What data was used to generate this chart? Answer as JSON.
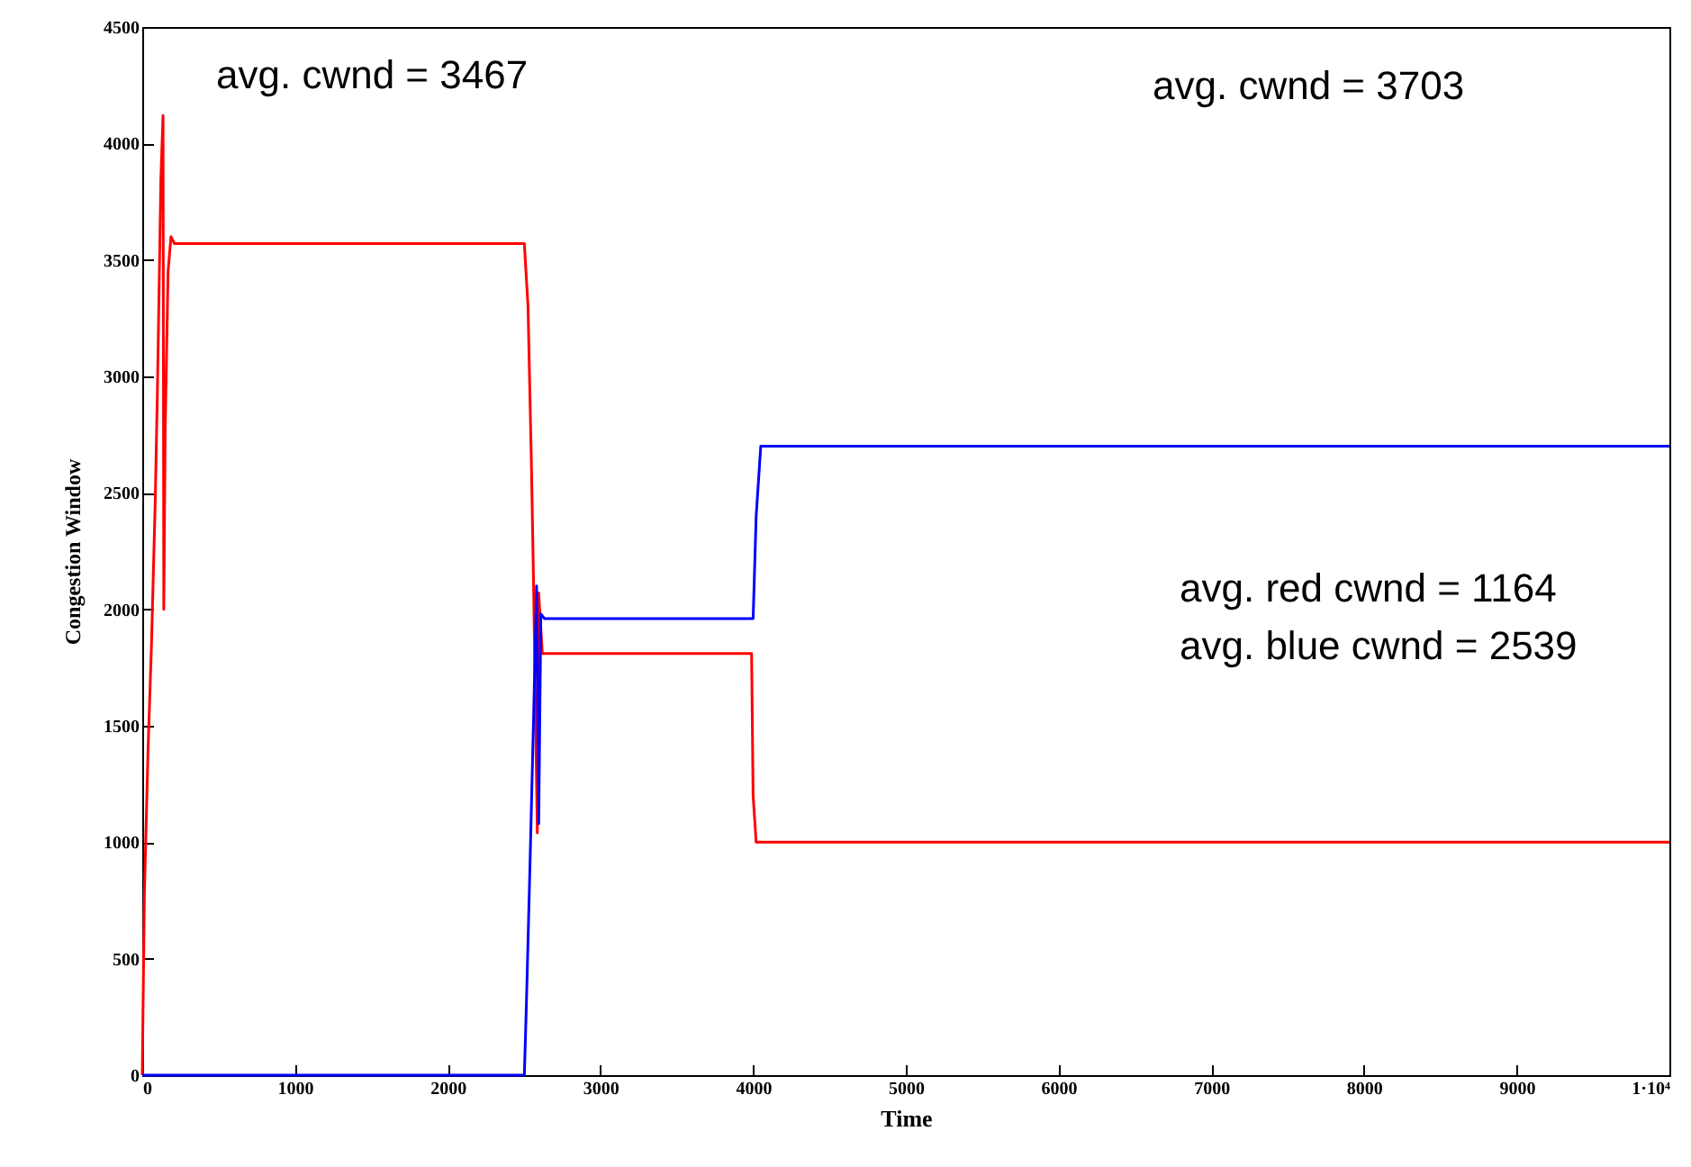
{
  "chart_data": {
    "type": "line",
    "xlabel": "Time",
    "ylabel": "Congestion Window",
    "xlim": [
      0,
      10000
    ],
    "xticks": [
      0,
      1000,
      2000,
      3000,
      4000,
      5000,
      6000,
      7000,
      8000,
      9000,
      {
        "value": 10000,
        "label": "1·10⁴"
      }
    ],
    "ylim": [
      0,
      4500
    ],
    "yticks": [
      0,
      500,
      1000,
      1500,
      2000,
      2500,
      3000,
      3500,
      4000,
      4500
    ],
    "grid": false,
    "line_style": "solid",
    "marker": "none",
    "annotations": [
      "avg. cwnd = 3467",
      "avg. cwnd = 3703",
      "avg. red cwnd = 1164",
      "avg. blue cwnd = 2539"
    ],
    "series": [
      {
        "color": "#ff0000",
        "x": [
          0,
          14,
          38,
          61,
          85,
          99,
          122,
          136,
          141,
          150,
          169,
          188,
          211,
          2502,
          2526,
          2549,
          2563,
          2587,
          2596,
          2620,
          3990,
          4000,
          4020,
          10000
        ],
        "values": [
          0,
          780,
          1400,
          1860,
          2470,
          2930,
          3850,
          4120,
          2000,
          2770,
          3450,
          3600,
          3570,
          3570,
          3300,
          2600,
          2080,
          1040,
          2070,
          1810,
          1810,
          1200,
          1000,
          1000
        ]
      },
      {
        "color": "#0000ff",
        "x": [
          0,
          2502,
          2516,
          2540,
          2563,
          2582,
          2596,
          2610,
          2634,
          3990,
          4000,
          4020,
          4050,
          10000
        ],
        "values": [
          0,
          0,
          320,
          930,
          1550,
          2100,
          1080,
          1980,
          1960,
          1960,
          1960,
          2400,
          2700,
          2700
        ]
      }
    ]
  }
}
